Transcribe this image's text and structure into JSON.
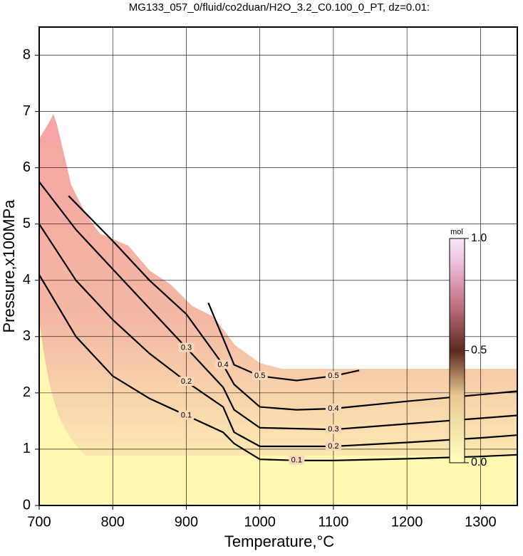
{
  "chart_data": {
    "type": "contour",
    "title": "MG133_057_0/fluid/co2duan/H2O_3.2_C0.100_0_PT, dz=0.01:",
    "x_label": "Temperature,°C",
    "y_label": "Pressure,x100MPa",
    "xlim": [
      700,
      1350
    ],
    "ylim": [
      0,
      8.5
    ],
    "xticks": [
      700,
      800,
      900,
      1000,
      1100,
      1200,
      1300
    ],
    "yticks": [
      0,
      1,
      2,
      3,
      4,
      5,
      6,
      7,
      8
    ],
    "grid": true,
    "series": [
      {
        "level": 0.1,
        "color": "#000000",
        "x": [
          700,
          750,
          800,
          850,
          900,
          950,
          965,
          1000,
          1050,
          1100,
          1200,
          1300,
          1350
        ],
        "y": [
          4.1,
          3.0,
          2.3,
          1.9,
          1.6,
          1.3,
          1.1,
          0.82,
          0.8,
          0.8,
          0.83,
          0.87,
          0.9
        ]
      },
      {
        "level": 0.2,
        "color": "#000000",
        "x": [
          700,
          750,
          800,
          850,
          900,
          950,
          965,
          1000,
          1100,
          1200,
          1300,
          1350
        ],
        "y": [
          5.0,
          4.0,
          3.3,
          2.7,
          2.2,
          1.75,
          1.3,
          1.05,
          1.05,
          1.12,
          1.2,
          1.25
        ]
      },
      {
        "level": 0.3,
        "color": "#000000",
        "x": [
          700,
          750,
          800,
          850,
          900,
          950,
          965,
          1000,
          1100,
          1200,
          1300,
          1350
        ],
        "y": [
          5.75,
          4.9,
          4.2,
          3.5,
          2.8,
          2.1,
          1.7,
          1.38,
          1.35,
          1.45,
          1.55,
          1.6
        ]
      },
      {
        "level": 0.4,
        "color": "#000000",
        "x": [
          740,
          800,
          850,
          900,
          950,
          965,
          1000,
          1050,
          1100,
          1200,
          1300,
          1350
        ],
        "y": [
          5.5,
          4.7,
          4.0,
          3.4,
          2.5,
          2.15,
          1.75,
          1.7,
          1.72,
          1.85,
          1.97,
          2.03
        ]
      },
      {
        "level": 0.5,
        "color": "#000000",
        "x": [
          930,
          965,
          1000,
          1050,
          1100,
          1135
        ],
        "y": [
          3.6,
          2.5,
          2.3,
          2.22,
          2.3,
          2.4
        ]
      }
    ],
    "colorbar": {
      "label": "mol",
      "lim": [
        0,
        1
      ],
      "ticks": [
        {
          "value": 0,
          "label": "0.0"
        },
        0.5,
        {
          "value": 1,
          "label": "1.0"
        }
      ]
    }
  }
}
